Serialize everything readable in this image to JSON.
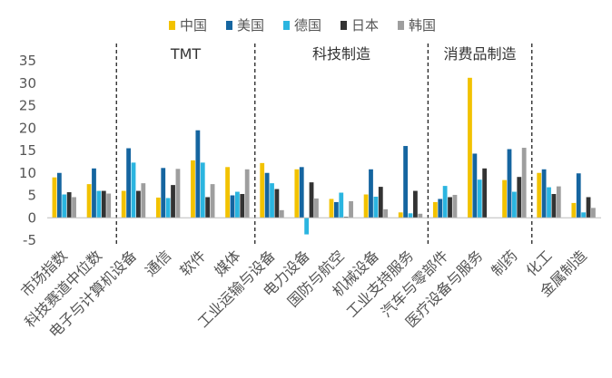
{
  "chart_data": {
    "type": "bar",
    "legend_position": "top",
    "ylim": [
      -5,
      35
    ],
    "yticks": [
      "35",
      "30",
      "25",
      "20",
      "15",
      "10",
      "5",
      "0",
      "-5"
    ],
    "ytick_values": [
      35,
      30,
      25,
      20,
      15,
      10,
      5,
      0,
      -5
    ],
    "categories": [
      "市场指数",
      "科技赛道中位数",
      "电子与计算机设备",
      "通信",
      "软件",
      "媒体",
      "工业运输与设备",
      "电力设备",
      "国防与航空",
      "机械设备",
      "工业支持服务",
      "汽车与零部件",
      "医疗设备与服务",
      "制药",
      "化工",
      "金属制造"
    ],
    "series": [
      {
        "name": "中国",
        "color": "#F2C200",
        "values": [
          9,
          7.5,
          6,
          4.5,
          12.8,
          11.3,
          12.2,
          10.8,
          4.2,
          5.2,
          1.2,
          3.5,
          31.2,
          8.4,
          10,
          3.3
        ]
      },
      {
        "name": "美国",
        "color": "#1565A0",
        "values": [
          10,
          11,
          15.5,
          11.1,
          19.5,
          5,
          10,
          11.3,
          3.5,
          10.8,
          16,
          4.2,
          14.3,
          15.3,
          10.8,
          9.9
        ]
      },
      {
        "name": "德国",
        "color": "#2BB5E0",
        "values": [
          5.2,
          6,
          12.3,
          4.4,
          12.3,
          5.8,
          7.7,
          -3.7,
          5.6,
          4.7,
          1,
          7.1,
          8.5,
          5.8,
          6.8,
          1.2
        ]
      },
      {
        "name": "日本",
        "color": "#333333",
        "values": [
          5.7,
          6,
          6,
          7.3,
          4.6,
          5.3,
          6.4,
          7.9,
          0.2,
          6.9,
          6,
          4.6,
          11,
          9.1,
          5.3,
          4.6
        ]
      },
      {
        "name": "韩国",
        "color": "#9E9E9E",
        "values": [
          4.6,
          5.4,
          7.7,
          10.9,
          7.5,
          10.8,
          1.7,
          4.3,
          3.7,
          1.9,
          0.9,
          5.1,
          0,
          15.6,
          7,
          2.2
        ]
      }
    ],
    "sector_labels": [
      "TMT",
      "科技制造",
      "消费品制造"
    ],
    "sector_dividers_after_category": [
      1,
      5,
      10,
      13
    ]
  }
}
